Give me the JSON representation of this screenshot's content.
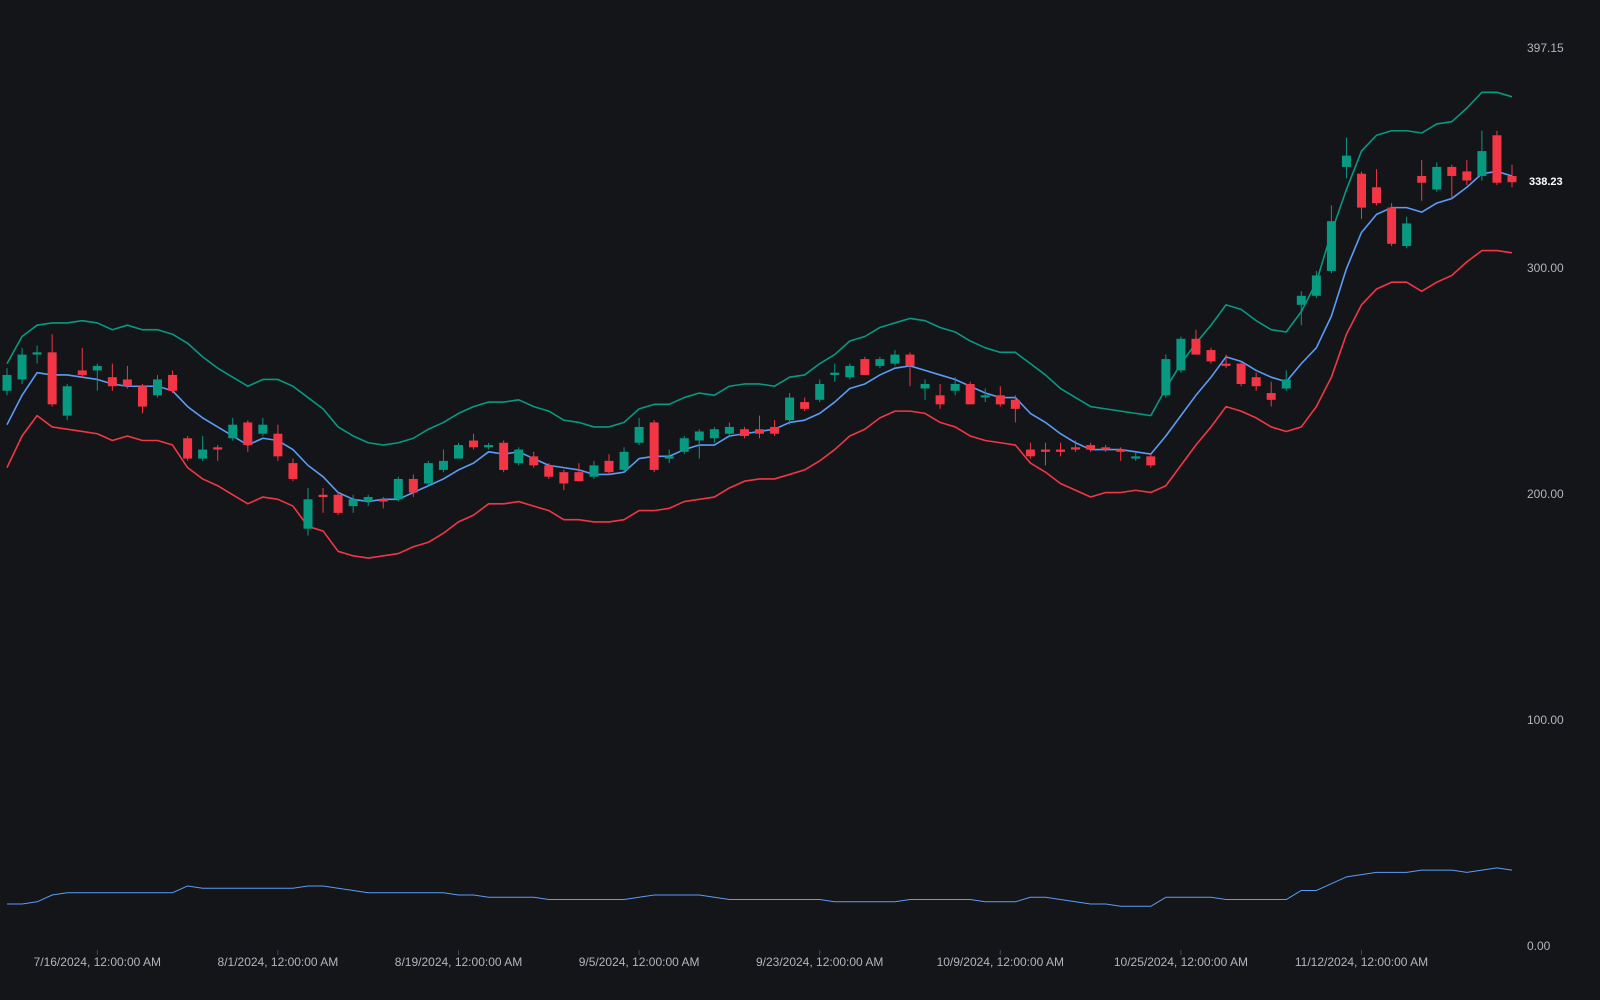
{
  "chart_data": {
    "type": "candlestick",
    "categories": [
      null,
      null,
      null,
      null,
      null,
      null,
      "7/16/2024, 12:00:00 AM",
      null,
      null,
      null,
      null,
      null,
      null,
      null,
      null,
      null,
      null,
      null,
      "8/1/2024, 12:00:00 AM",
      null,
      null,
      null,
      null,
      null,
      null,
      null,
      null,
      null,
      null,
      null,
      "8/19/2024, 12:00:00 AM",
      null,
      null,
      null,
      null,
      null,
      null,
      null,
      null,
      null,
      null,
      null,
      "9/5/2024, 12:00:00 AM",
      null,
      null,
      null,
      null,
      null,
      null,
      null,
      null,
      null,
      null,
      null,
      "9/23/2024, 12:00:00 AM",
      null,
      null,
      null,
      null,
      null,
      null,
      null,
      null,
      null,
      null,
      null,
      "10/9/2024, 12:00:00 AM",
      null,
      null,
      null,
      null,
      null,
      null,
      null,
      null,
      null,
      null,
      null,
      "10/25/2024, 12:00:00 AM",
      null,
      null,
      null,
      null,
      null,
      null,
      null,
      null,
      null,
      null,
      null,
      "11/12/2024, 12:00:00 AM",
      null,
      null,
      null,
      null,
      null,
      null,
      null,
      null,
      null,
      null
    ],
    "open": [
      246,
      251,
      262,
      263,
      235,
      255,
      255,
      252,
      251,
      248,
      244,
      253,
      225,
      216,
      221,
      225,
      232,
      227,
      227,
      214,
      185,
      200,
      200,
      195,
      197,
      198,
      198,
      207,
      205,
      211,
      216,
      224,
      221,
      223,
      214,
      217,
      213,
      210,
      210,
      208,
      215,
      211,
      223,
      232,
      216,
      219,
      224,
      225,
      227,
      229,
      229,
      230,
      233,
      241,
      242,
      253,
      252,
      260,
      257,
      258,
      262,
      247,
      244,
      246,
      249,
      243,
      244,
      242,
      220,
      220,
      220,
      221,
      222,
      221,
      220,
      216,
      217,
      244,
      255,
      269,
      264,
      258,
      258,
      252,
      245,
      247,
      284,
      288,
      299,
      345,
      342,
      336,
      327,
      310,
      341,
      335,
      345,
      343,
      341,
      359,
      341
    ],
    "high": [
      256,
      265,
      266,
      271,
      249,
      265,
      258,
      258,
      257,
      249,
      253,
      255,
      226,
      226,
      222,
      234,
      233,
      234,
      231,
      216,
      203,
      203,
      201,
      200,
      200,
      199,
      208,
      209,
      215,
      220,
      223,
      227,
      223,
      224,
      221,
      219,
      214,
      211,
      214,
      215,
      218,
      221,
      234,
      233,
      220,
      226,
      229,
      230,
      232,
      230,
      235,
      233,
      245,
      243,
      251,
      258,
      258,
      261,
      261,
      264,
      263,
      251,
      249,
      252,
      250,
      247,
      248,
      244,
      223,
      223,
      223,
      224,
      223,
      222,
      221,
      219,
      218,
      262,
      270,
      273,
      265,
      262,
      259,
      254,
      250,
      255,
      290,
      299,
      328,
      358,
      343,
      344,
      329,
      323,
      348,
      347,
      346,
      348,
      361,
      361,
      346
    ],
    "low": [
      244,
      249,
      258,
      239,
      233,
      252,
      246,
      246,
      247,
      236,
      243,
      245,
      215,
      215,
      215,
      224,
      219,
      226,
      215,
      206,
      182,
      192,
      191,
      192,
      195,
      194,
      197,
      199,
      204,
      210,
      216,
      220,
      220,
      210,
      213,
      212,
      207,
      202,
      206,
      207,
      209,
      210,
      222,
      210,
      214,
      218,
      216,
      223,
      226,
      225,
      225,
      226,
      231,
      237,
      241,
      250,
      251,
      253,
      256,
      257,
      248,
      242,
      238,
      244,
      240,
      241,
      239,
      232,
      216,
      213,
      217,
      219,
      219,
      219,
      215,
      215,
      212,
      243,
      254,
      262,
      258,
      256,
      248,
      246,
      239,
      246,
      275,
      287,
      298,
      340,
      322,
      328,
      310,
      309,
      330,
      334,
      331,
      337,
      339,
      337,
      336
    ],
    "close": [
      253,
      262,
      263,
      240,
      248,
      253,
      257,
      248,
      248,
      239,
      251,
      246,
      216,
      220,
      220,
      231,
      222,
      231,
      217,
      207,
      198,
      199,
      192,
      198,
      199,
      197,
      207,
      201,
      214,
      215,
      222,
      221,
      222,
      211,
      220,
      213,
      208,
      205,
      206,
      213,
      210,
      219,
      230,
      211,
      217,
      225,
      228,
      229,
      230,
      226,
      227,
      227,
      243,
      238,
      249,
      254,
      257,
      253,
      260,
      262,
      257,
      249,
      240,
      249,
      240,
      244,
      240,
      238,
      217,
      219,
      219,
      220,
      220,
      220,
      219,
      217,
      213,
      260,
      269,
      262,
      259,
      257,
      249,
      248,
      242,
      251,
      288,
      297,
      321,
      350,
      327,
      329,
      311,
      320,
      338,
      345,
      341,
      339,
      352,
      338,
      338.23
    ],
    "up_color": "#089981",
    "down_color": "#f23645",
    "overlays": [
      {
        "color": "#089981",
        "values": [
          258,
          270,
          275,
          276,
          276,
          277,
          276,
          273,
          275,
          273,
          273,
          271,
          267,
          261,
          256,
          252,
          248,
          251,
          251,
          248,
          243,
          238,
          230,
          226,
          223,
          222,
          223,
          225,
          229,
          232,
          236,
          239,
          241,
          241,
          242,
          239,
          237,
          233,
          232,
          230,
          230,
          232,
          238,
          240,
          240,
          243,
          245,
          244,
          248,
          249,
          249,
          248,
          252,
          253,
          258,
          262,
          268,
          270,
          274,
          276,
          278,
          277,
          274,
          272,
          268,
          265,
          263,
          263,
          258,
          253,
          247,
          243,
          239,
          238,
          237,
          236,
          235,
          247,
          258,
          267,
          275,
          284,
          282,
          277,
          273,
          272,
          281,
          294,
          316,
          335,
          352,
          359,
          361,
          361,
          360,
          364,
          365,
          371,
          378,
          378,
          376
        ]
      },
      {
        "color": "#5b9cf6",
        "values": [
          231,
          244,
          254,
          253,
          253,
          252,
          251,
          249,
          248,
          248,
          248,
          246,
          239,
          234,
          230,
          226,
          222,
          225,
          224,
          220,
          213,
          208,
          201,
          198,
          197,
          198,
          198,
          201,
          204,
          207,
          211,
          214,
          219,
          218,
          219,
          216,
          213,
          212,
          211,
          209,
          209,
          210,
          216,
          217,
          217,
          220,
          222,
          222,
          226,
          227,
          228,
          229,
          232,
          233,
          236,
          241,
          247,
          249,
          253,
          256,
          257,
          255,
          253,
          251,
          248,
          245,
          243,
          243,
          236,
          232,
          227,
          223,
          220,
          220,
          220,
          219,
          218,
          226,
          235,
          244,
          252,
          261,
          259,
          255,
          252,
          250,
          258,
          265,
          279,
          300,
          316,
          324,
          327,
          327,
          325,
          329,
          331,
          336,
          342,
          343,
          341
        ]
      },
      {
        "color": "#f23645",
        "values": [
          212,
          226,
          235,
          230,
          229,
          228,
          227,
          224,
          226,
          224,
          224,
          222,
          212,
          207,
          204,
          200,
          196,
          199,
          198,
          195,
          186,
          184,
          175,
          173,
          172,
          173,
          174,
          177,
          179,
          183,
          188,
          191,
          196,
          196,
          197,
          195,
          193,
          189,
          189,
          188,
          188,
          189,
          193,
          193,
          194,
          197,
          198,
          199,
          203,
          206,
          207,
          207,
          209,
          211,
          215,
          220,
          226,
          229,
          234,
          237,
          237,
          236,
          232,
          230,
          226,
          224,
          223,
          222,
          214,
          210,
          205,
          202,
          199,
          201,
          201,
          202,
          201,
          204,
          213,
          222,
          230,
          239,
          237,
          234,
          230,
          228,
          230,
          239,
          252,
          271,
          284,
          291,
          294,
          294,
          290,
          294,
          297,
          303,
          308,
          308,
          307
        ]
      },
      {
        "color": "#5b9cf6",
        "values": [
          19,
          19,
          20,
          23,
          24,
          24,
          24,
          24,
          24,
          24,
          24,
          24,
          27,
          26,
          26,
          26,
          26,
          26,
          26,
          26,
          27,
          27,
          26,
          25,
          24,
          24,
          24,
          24,
          24,
          24,
          23,
          23,
          22,
          22,
          22,
          22,
          21,
          21,
          21,
          21,
          21,
          21,
          22,
          23,
          23,
          23,
          23,
          22,
          21,
          21,
          21,
          21,
          21,
          21,
          21,
          20,
          20,
          20,
          20,
          20,
          21,
          21,
          21,
          21,
          21,
          20,
          20,
          20,
          22,
          22,
          21,
          20,
          19,
          19,
          18,
          18,
          18,
          22,
          22,
          22,
          22,
          21,
          21,
          21,
          21,
          21,
          25,
          25,
          28,
          31,
          32,
          33,
          33,
          33,
          34,
          34,
          34,
          33,
          34,
          35,
          34
        ]
      }
    ],
    "ylim": [
      0,
      397.15
    ],
    "yticks": [
      {
        "value": 0,
        "label": "0.00"
      },
      {
        "value": 100,
        "label": "100.00"
      },
      {
        "value": 200,
        "label": "200.00"
      },
      {
        "value": 300,
        "label": "300.00"
      },
      397.15
    ],
    "grid": false
  }
}
